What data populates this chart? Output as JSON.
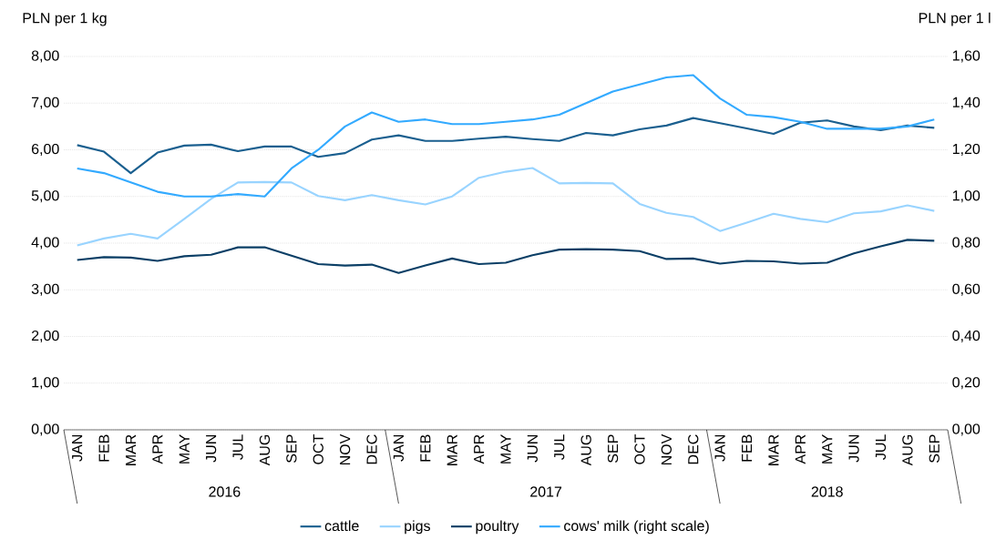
{
  "chart_data": {
    "type": "line",
    "ylabel": "PLN per 1 kg",
    "y2label": "PLN per 1 l",
    "categories": [
      "JAN",
      "FEB",
      "MAR",
      "APR",
      "MAY",
      "JUN",
      "JUL",
      "AUG",
      "SEP",
      "OCT",
      "NOV",
      "DEC",
      "JAN",
      "FEB",
      "MAR",
      "APR",
      "MAY",
      "JUN",
      "JUL",
      "AUG",
      "SEP",
      "OCT",
      "NOV",
      "DEC",
      "JAN",
      "FEB",
      "MAR",
      "APR",
      "MAY",
      "JUN",
      "JUL",
      "AUG",
      "SEP"
    ],
    "annotations": [
      "2016",
      "2017",
      "2018"
    ],
    "series": [
      {
        "name": "cattle",
        "color": "#1a5f8f",
        "values": [
          6.1,
          5.96,
          5.5,
          5.94,
          6.09,
          6.11,
          5.97,
          6.07,
          6.07,
          5.85,
          5.93,
          6.22,
          6.31,
          6.19,
          6.19,
          6.24,
          6.28,
          6.23,
          6.19,
          6.36,
          6.31,
          6.44,
          6.52,
          6.68,
          6.57,
          6.46,
          6.34,
          6.58,
          6.63,
          6.5,
          6.42,
          6.52,
          6.47
        ]
      },
      {
        "name": "pigs",
        "color": "#99d4ff",
        "values": [
          3.95,
          4.1,
          4.2,
          4.1,
          4.52,
          4.95,
          5.3,
          5.31,
          5.3,
          5.01,
          4.92,
          5.03,
          4.92,
          4.83,
          5.0,
          5.4,
          5.53,
          5.61,
          5.28,
          5.29,
          5.28,
          4.84,
          4.65,
          4.56,
          4.26,
          4.44,
          4.63,
          4.52,
          4.45,
          4.64,
          4.68,
          4.81,
          4.69
        ]
      },
      {
        "name": "poultry",
        "color": "#0b3f66",
        "values": [
          3.64,
          3.7,
          3.69,
          3.62,
          3.72,
          3.75,
          3.91,
          3.91,
          3.73,
          3.55,
          3.52,
          3.54,
          3.36,
          3.52,
          3.67,
          3.55,
          3.58,
          3.74,
          3.86,
          3.87,
          3.86,
          3.83,
          3.66,
          3.67,
          3.56,
          3.62,
          3.61,
          3.56,
          3.58,
          3.78,
          3.93,
          4.07,
          4.05
        ]
      },
      {
        "name": "cows' milk (right scale)",
        "color": "#33aaff",
        "axis": "y2",
        "values": [
          1.12,
          1.1,
          1.06,
          1.02,
          1.0,
          1.0,
          1.01,
          1.0,
          1.12,
          1.2,
          1.3,
          1.36,
          1.32,
          1.33,
          1.31,
          1.31,
          1.32,
          1.33,
          1.35,
          1.4,
          1.45,
          1.48,
          1.51,
          1.52,
          1.42,
          1.35,
          1.34,
          1.32,
          1.29,
          1.29,
          1.29,
          1.3,
          1.33
        ]
      }
    ],
    "ylim": [
      0,
      8
    ],
    "yticks": [
      {
        "value": 0,
        "label": "0,00"
      },
      {
        "value": 1,
        "label": "1,00"
      },
      {
        "value": 2,
        "label": "2,00"
      },
      {
        "value": 3,
        "label": "3,00"
      },
      {
        "value": 4,
        "label": "4,00"
      },
      {
        "value": 5,
        "label": "5,00"
      },
      {
        "value": 6,
        "label": "6,00"
      },
      {
        "value": 7,
        "label": "7,00"
      },
      {
        "value": 8,
        "label": "8,00"
      }
    ],
    "y2lim": [
      0,
      1.6
    ],
    "y2ticks": [
      {
        "value": 0,
        "label": "0,00"
      },
      {
        "value": 0.2,
        "label": "0,20"
      },
      {
        "value": 0.4,
        "label": "0,40"
      },
      {
        "value": 0.6,
        "label": "0,60"
      },
      {
        "value": 0.8,
        "label": "0,80"
      },
      {
        "value": 1.0,
        "label": "1,00"
      },
      {
        "value": 1.2,
        "label": "1,20"
      },
      {
        "value": 1.4,
        "label": "1,40"
      },
      {
        "value": 1.6,
        "label": "1,60"
      }
    ],
    "grid": "y",
    "legend": "bottom"
  }
}
